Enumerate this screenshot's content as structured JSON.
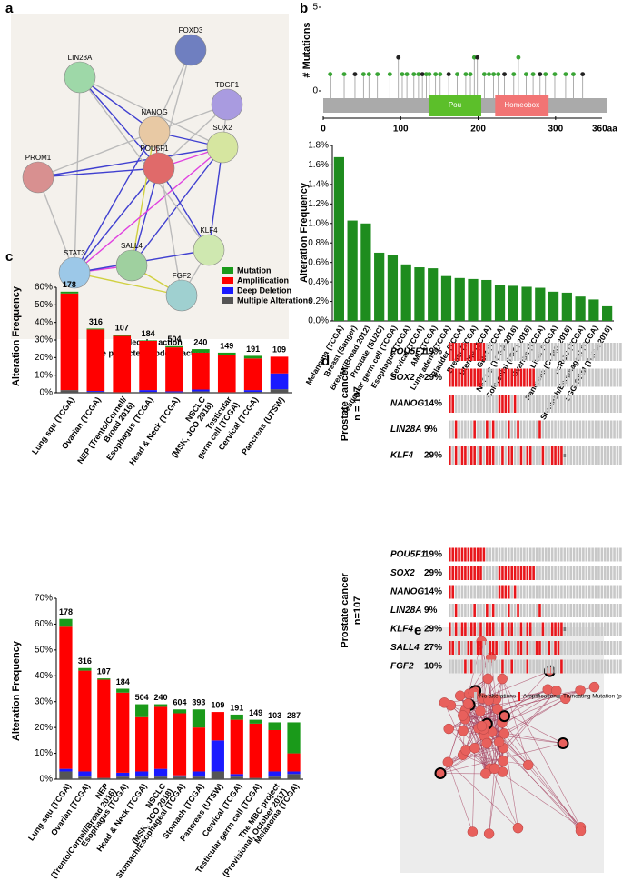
{
  "panel_labels": [
    "a",
    "b",
    "c",
    "d",
    "e"
  ],
  "network_a": {
    "nodes": [
      "LIN28A",
      "FOXD3",
      "TDGF1",
      "NANOG",
      "POU5F1",
      "SOX2",
      "PROM1",
      "STAT3",
      "SALL4",
      "KLF4",
      "FGF2"
    ],
    "caption": [
      "molecular action",
      "(the predicted mode of action)"
    ]
  },
  "chart_data": [
    {
      "type": "lollipop",
      "y_label": "# Mutations",
      "x_end_label": "360aa",
      "x": [
        9,
        27,
        41,
        52,
        59,
        70,
        86,
        97,
        102,
        108,
        117,
        123,
        128,
        133,
        137,
        145,
        151,
        162,
        173,
        184,
        190,
        195,
        199,
        208,
        214,
        220,
        226,
        234,
        246,
        252,
        262,
        271,
        280,
        287,
        299,
        313,
        323,
        335
      ],
      "values": [
        1,
        1,
        1,
        1,
        1,
        1,
        1,
        2,
        1,
        1,
        1,
        1,
        1,
        1,
        1,
        1,
        1,
        1,
        1,
        1,
        1,
        2,
        2,
        1,
        1,
        1,
        1,
        1,
        1,
        2,
        1,
        1,
        1,
        1,
        1,
        1,
        1,
        1
      ],
      "xlim": [
        0,
        360
      ],
      "xticks": [
        0,
        100,
        200,
        300
      ],
      "ylim": [
        0,
        5
      ],
      "yticks": [
        0,
        5
      ],
      "color": "#3aa535",
      "track_color": "#aaaaaa",
      "domains": [
        {
          "name": "Pou",
          "start": 136,
          "end": 204,
          "color": "#5cbf2a"
        },
        {
          "name": "Homeobox",
          "start": 222,
          "end": 291,
          "color": "#f27474"
        }
      ]
    },
    {
      "type": "bar",
      "y_label": "Alteration Frequency",
      "color": "#1e8c1e",
      "categories": [
        "Melanoma (TCGA)",
        "Breast (Sanger)",
        "Breast (Broad 2012)",
        "Prostate (SU2C)",
        "Testicular germ cell (TCGA)",
        "Esophagus (TCGA)",
        "Cervical (TCGA)",
        "AML (TCGA)",
        "Lung adeno (TCGA)",
        "Bladder (TCGA)",
        "Breast (TCGA)",
        "Uterine (TCGA)",
        "GBM (TCGA)",
        "NSCLC (TCGA 2016)",
        "Colorectal (DFCI 2016)",
        "Ovarian (TCGA)",
        "Liver (TCGA)",
        "Pancreas (CCMG 2016)",
        "ccRCC (TCGA)",
        "Stomach/Esophageal (TCGA)",
        "LGG-GBM (TCGA 2016)"
      ],
      "values": [
        1.68,
        1.03,
        1.0,
        0.7,
        0.68,
        0.58,
        0.55,
        0.54,
        0.46,
        0.44,
        0.43,
        0.42,
        0.37,
        0.36,
        0.35,
        0.34,
        0.3,
        0.29,
        0.25,
        0.22,
        0.15
      ],
      "ylim": [
        0,
        1.8
      ],
      "yticks": [
        {
          "value": 0,
          "label": "0.0%"
        },
        {
          "value": 0.2,
          "label": "0.2%"
        },
        {
          "value": 0.4,
          "label": "0.4%"
        },
        {
          "value": 0.6,
          "label": "0.6%"
        },
        {
          "value": 0.8,
          "label": "0.8%"
        },
        {
          "value": 1.0,
          "label": "1.0%"
        },
        {
          "value": 1.2,
          "label": "1.2%"
        },
        {
          "value": 1.4,
          "label": "1.4%"
        },
        {
          "value": 1.6,
          "label": "1.6%"
        },
        {
          "value": 1.8,
          "label": "1.8%"
        }
      ]
    },
    {
      "type": "stacked_bar",
      "y_label": "Alteration Frequency",
      "legend": "upper right",
      "categories": [
        "Lung squ (TCGA)",
        "Ovarian (TCGA)",
        "NEP (Trento/Cornell/\nBroad 2016)",
        "Esophagus (TCGA)",
        "Head & Neck (TCGA)",
        "NSCLC\n(MSK, JCO 2018)",
        "Testicular\ngerm cell (TCGA)",
        "Cervical (TCGA)",
        "Pancreas (UTSW)"
      ],
      "sample_counts": [
        178,
        316,
        107,
        184,
        504,
        240,
        149,
        191,
        109
      ],
      "series": [
        {
          "name": "Multiple Alterations",
          "color": "#555555",
          "values": [
            1.5,
            0.5,
            0.3,
            0.5,
            0.3,
            0.8,
            0.3,
            0.5,
            2
          ]
        },
        {
          "name": "Deep Deletion",
          "color": "#1a1aff",
          "values": [
            0,
            0.5,
            0,
            1,
            0.5,
            1,
            0,
            1,
            9
          ]
        },
        {
          "name": "Amplification",
          "color": "#ff0000",
          "values": [
            55,
            35,
            32,
            28,
            25,
            21,
            21,
            18,
            9.5
          ]
        },
        {
          "name": "Mutation",
          "color": "#1a9a1a",
          "values": [
            1,
            0.5,
            0.7,
            0.3,
            0.7,
            2,
            1.5,
            1.5,
            0
          ]
        }
      ],
      "ylim": [
        0,
        60
      ],
      "yticks": [
        {
          "value": 0,
          "label": "0%"
        },
        {
          "value": 10,
          "label": "10%"
        },
        {
          "value": 20,
          "label": "20%"
        },
        {
          "value": 30,
          "label": "30%"
        },
        {
          "value": 40,
          "label": "40%"
        },
        {
          "value": 50,
          "label": "50%"
        },
        {
          "value": 60,
          "label": "60%"
        }
      ]
    },
    {
      "type": "stacked_bar",
      "y_label": "Alteration Frequency",
      "categories": [
        "Lung squ (TCGA)",
        "Ovarian (TCGA)",
        "NEP\n(Trento/Cornell/Broad 2016)",
        "Esophagus (TCGA)",
        "Head & Neck (TCGA)",
        "NSCLC\n(MSK, JCO 2018)",
        "Stomach/Esophageal (TCGA)",
        "Stomach (TCGA)",
        "Pancreas (UTSW)",
        "Cervical (TCGA)",
        "Testicular germ cell (TCGA)",
        "The MBC project\n(Provisional, October 2017)",
        "Melanoma (TCGA)"
      ],
      "sample_counts": [
        178,
        316,
        107,
        184,
        504,
        240,
        604,
        393,
        109,
        191,
        149,
        103,
        287
      ],
      "series": [
        {
          "name": "Multiple Alterations",
          "color": "#555555",
          "values": [
            3,
            1,
            0.5,
            1,
            1,
            1,
            1,
            1,
            3,
            1,
            0.5,
            1,
            2
          ]
        },
        {
          "name": "Deep Deletion",
          "color": "#1a1aff",
          "values": [
            1,
            2,
            0,
            1.5,
            2,
            3,
            0.5,
            2,
            12,
            1,
            0,
            2,
            1
          ]
        },
        {
          "name": "Amplification",
          "color": "#ff0000",
          "values": [
            55,
            39,
            38,
            31,
            21,
            24,
            24,
            17,
            11,
            21,
            21,
            16,
            7
          ]
        },
        {
          "name": "Mutation",
          "color": "#1a9a1a",
          "values": [
            3,
            1,
            0.5,
            1.5,
            5,
            1,
            1.5,
            7,
            0,
            2,
            1.5,
            3,
            12
          ]
        }
      ],
      "ylim": [
        0,
        70
      ],
      "yticks": [
        {
          "value": 0,
          "label": "0%"
        },
        {
          "value": 10,
          "label": "10%"
        },
        {
          "value": 20,
          "label": "20%"
        },
        {
          "value": 30,
          "label": "30%"
        },
        {
          "value": 40,
          "label": "40%"
        },
        {
          "value": 50,
          "label": "50%"
        },
        {
          "value": 60,
          "label": "60%"
        },
        {
          "value": 70,
          "label": "70%"
        }
      ]
    }
  ],
  "oncoprint": {
    "groups": [
      {
        "label": [
          "Prostate cancer",
          "n = 107"
        ],
        "rows": [
          {
            "gene": "POU5F1",
            "percent": "19%",
            "cells": "AAAAAAAAAAAANNNNNNNNNNNNNNNNNNNNNNNNNNNNNNNNNNNNNNNNNNNN"
          },
          {
            "gene": "SOX2",
            "percent": "29%",
            "cells": "AAAAAAAAAAANNNNNAAAAAAAAAAAANNNNNNNNNNNNNNNNNNNNNNNNNNNN"
          },
          {
            "gene": "NANOG",
            "percent": "14%",
            "cells": "AANNNNNNNNNNNNNNAAAANANNNNNNNNNNNNNNNNNNNNNNNNNNNNNNNNNN"
          },
          {
            "gene": "LIN28A",
            "percent": "9%",
            "cells": "NNANNNNNANNNANANNNNANNANNNNNNANNNNNNNNNNNNNNNNNNNNNNNNNN"
          },
          {
            "gene": "KLF4",
            "percent": "29%",
            "cells": "ANANAANAANANAAANNANAANNANAANNNANNAAAATNNNNNNNNNNNNNNNNNN"
          }
        ]
      },
      {
        "label": [
          "Prostate cancer",
          "n=107"
        ],
        "rows": [
          {
            "gene": "POU5F1",
            "percent": "19%",
            "cells": "AAAAAAAAAAAANNNNNNNNNNNNNNNNNNNNNNNNNNNNNNNNNNNNNNNNNNNN"
          },
          {
            "gene": "SOX2",
            "percent": "29%",
            "cells": "AAAAAAAAAAANNNNNAAAAAAAAAAAANNNNNNNNNNNNNNNNNNNNNNNNNNNN"
          },
          {
            "gene": "NANOG",
            "percent": "14%",
            "cells": "AANNNNNNNNNNNNNNAAAANANNNNNNNNNNNNNNNNNNNNNNNNNNNNNNNNNN"
          },
          {
            "gene": "LIN28A",
            "percent": "9%",
            "cells": "NNANNNNNANNNANANNNNANNANNNNNNANNNNNNNNNNNNNNNNNNNNNNNNNN"
          },
          {
            "gene": "KLF4",
            "percent": "29%",
            "cells": "ANANAANAANANAAANNANAANNANAANNNANNAAAATNNNNNNNNNNNNNNNNNN"
          },
          {
            "gene": "SALL4",
            "percent": "27%",
            "cells": "AANANNAANAANNAAANNAANNAANANNAANNANAANNNNNNNNNNNNNNNNNNNN"
          },
          {
            "gene": "FGF2",
            "percent": "10%",
            "cells": "NNNNNANANNNNNNNNNANNANNNNANNNNNNNNNNANNNNNNNNNNNNNNNNNNN"
          }
        ]
      }
    ],
    "legend": [
      "No alterations",
      "Amplification",
      "Truncating Mutation (put"
    ],
    "colors": {
      "N": "#c8c8c8",
      "A": "#e8161b",
      "T": "#777777"
    }
  }
}
